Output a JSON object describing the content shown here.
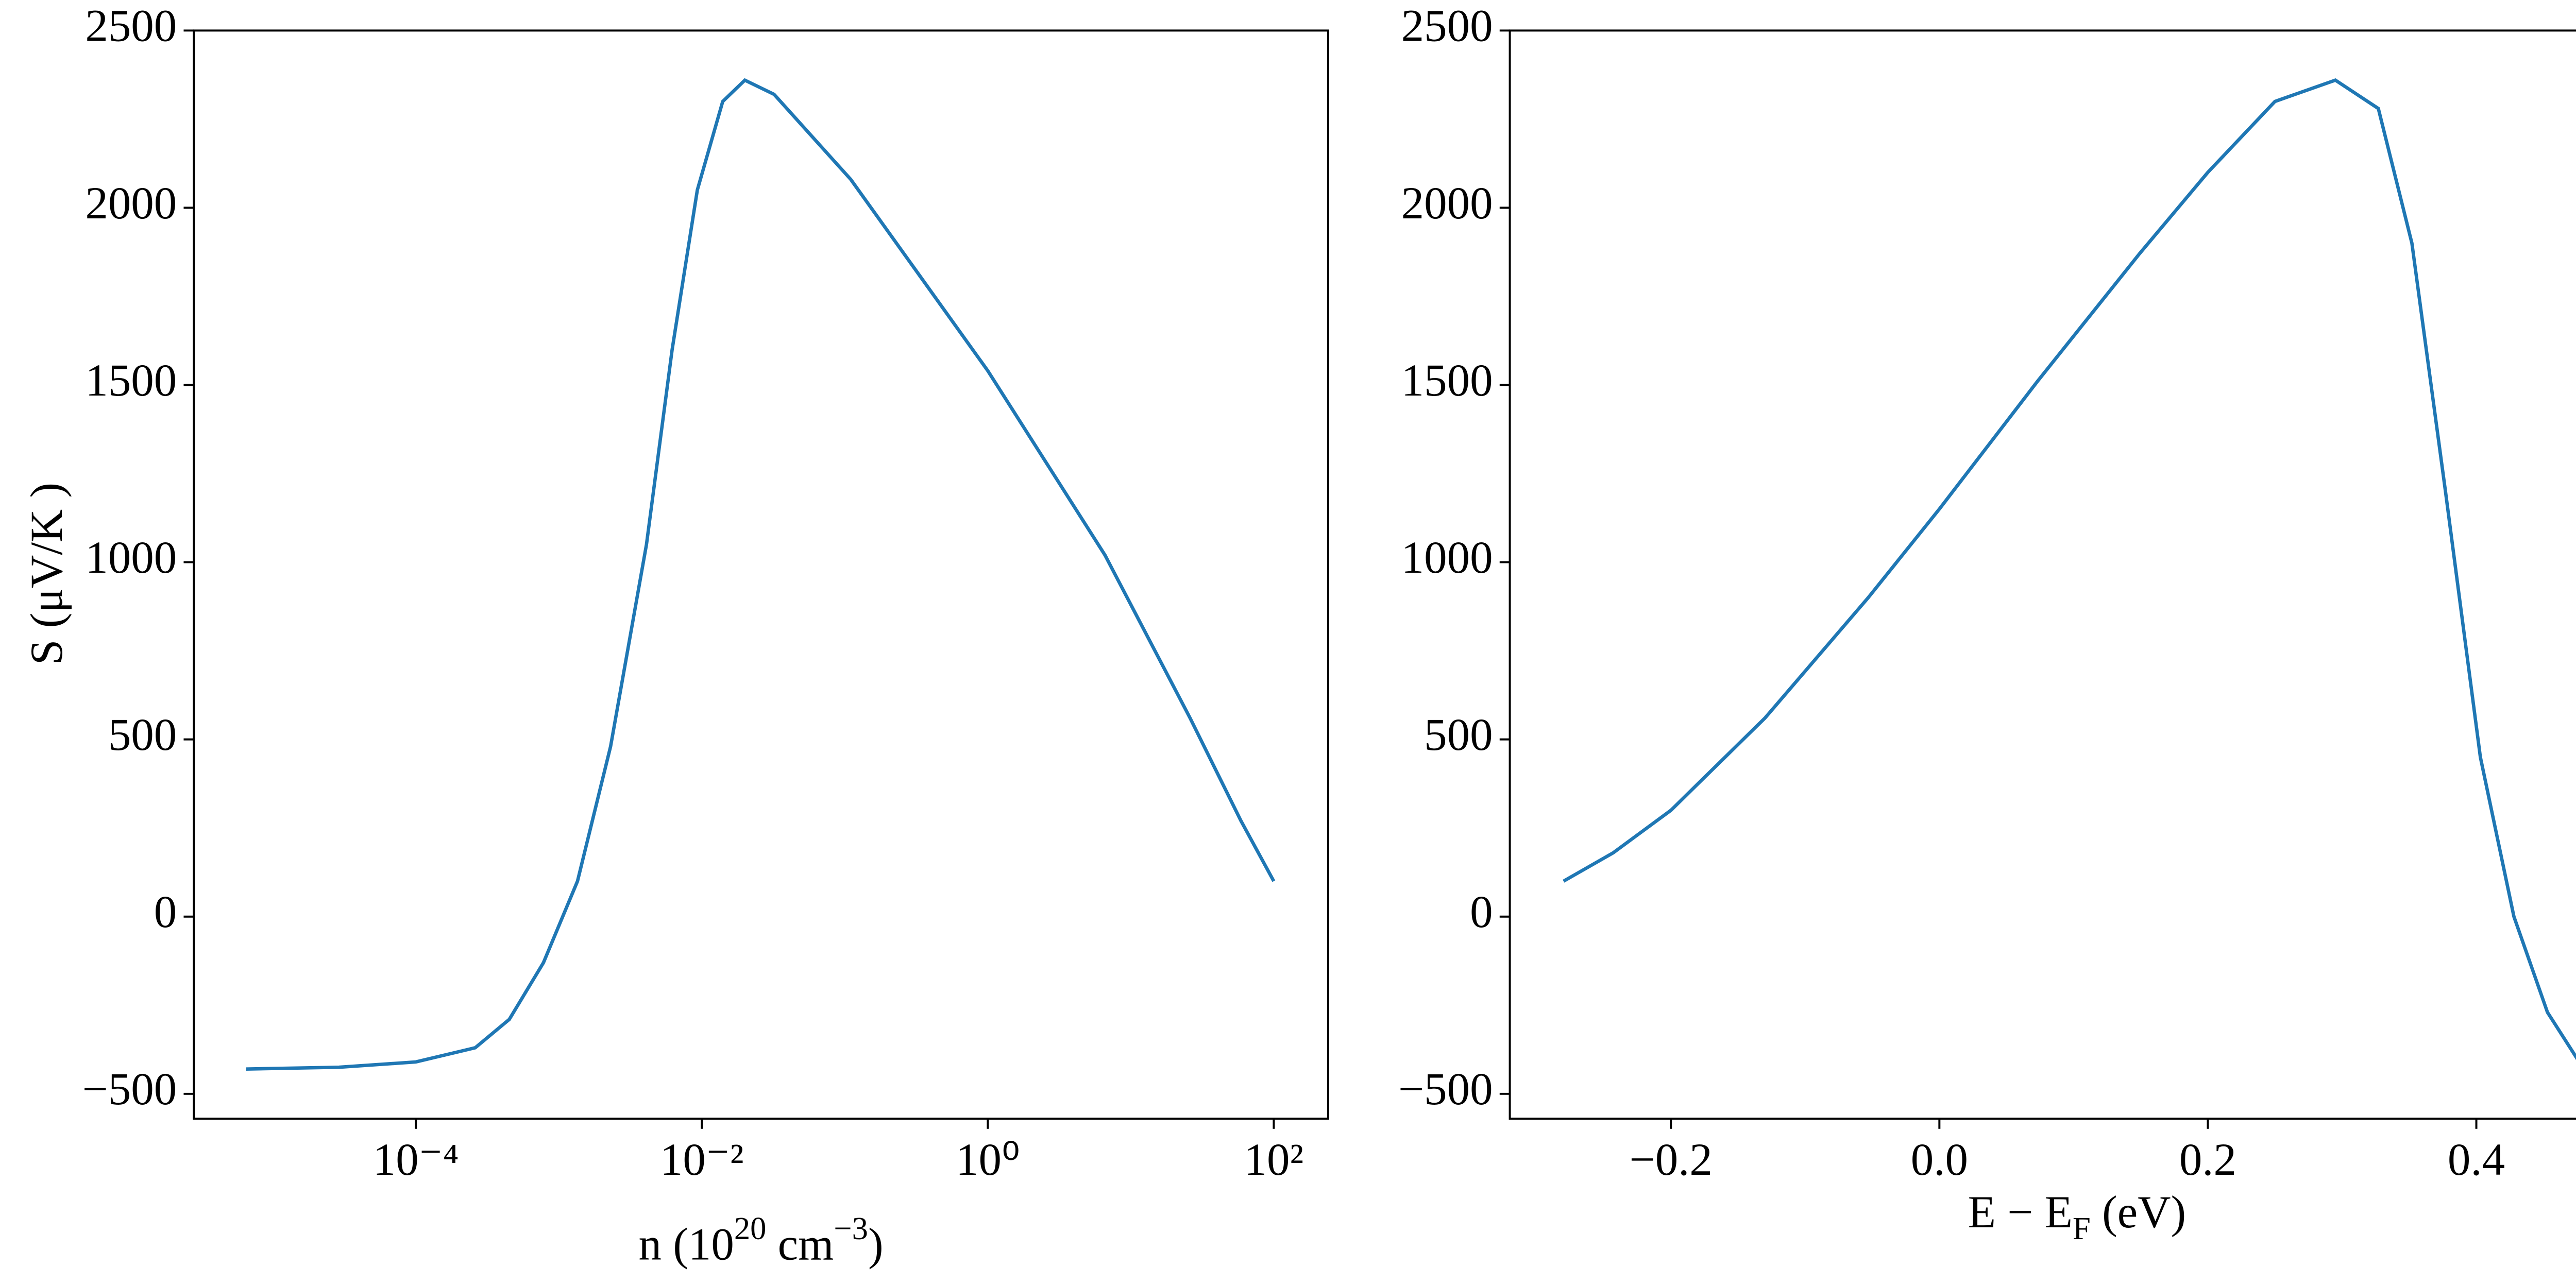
{
  "chart_data": [
    {
      "type": "line",
      "log_x": true,
      "color": "#1f77b4",
      "ylabel": "S (μV/K )",
      "xlabel": [
        "n (10",
        "20",
        " cm",
        "−3",
        ")"
      ],
      "x": [
        6.5e-06,
        2.9e-05,
        0.0001,
        0.00026,
        0.00045,
        0.00078,
        0.00135,
        0.0023,
        0.0041,
        0.0062,
        0.0093,
        0.014,
        0.02,
        0.032,
        0.11,
        1,
        6.6,
        26,
        59,
        100
      ],
      "values": [
        -430,
        -425,
        -410,
        -370,
        -290,
        -130,
        100,
        480,
        1050,
        1600,
        2050,
        2300,
        2360,
        2320,
        2080,
        1540,
        1020,
        560,
        270,
        100
      ],
      "xlim": [
        2.8e-06,
        240
      ],
      "xticks": [
        {
          "value": 0.0001,
          "label": "10⁻⁴"
        },
        {
          "value": 0.01,
          "label": "10⁻²"
        },
        {
          "value": 1,
          "label": "10⁰"
        },
        {
          "value": 100,
          "label": "10²"
        }
      ],
      "ylim": [
        -570,
        2500
      ],
      "yticks": [
        {
          "value": -500,
          "label": "−500"
        },
        0,
        500,
        1000,
        1500,
        2000,
        2500
      ]
    },
    {
      "type": "line",
      "log_x": false,
      "color": "#1f77b4",
      "xlabel": [
        "E − E",
        "F",
        " (eV)"
      ],
      "x": [
        -0.28,
        -0.243,
        -0.2,
        -0.13,
        -0.053,
        0,
        0.073,
        0.149,
        0.2,
        0.25,
        0.295,
        0.327,
        0.352,
        0.377,
        0.403,
        0.428,
        0.453,
        0.48
      ],
      "values": [
        100,
        180,
        300,
        560,
        900,
        1150,
        1510,
        1870,
        2100,
        2300,
        2360,
        2280,
        1900,
        1200,
        450,
        0,
        -270,
        -430
      ],
      "xlim": [
        -0.32,
        0.525
      ],
      "xticks": [
        {
          "value": -0.2,
          "label": "−0.2"
        },
        {
          "value": 0,
          "label": "0.0"
        },
        0.2,
        0.4
      ],
      "ylim": [
        -570,
        2500
      ],
      "yticks": [
        {
          "value": -500,
          "label": "−500"
        },
        0,
        500,
        1000,
        1500,
        2000,
        2500
      ]
    }
  ]
}
